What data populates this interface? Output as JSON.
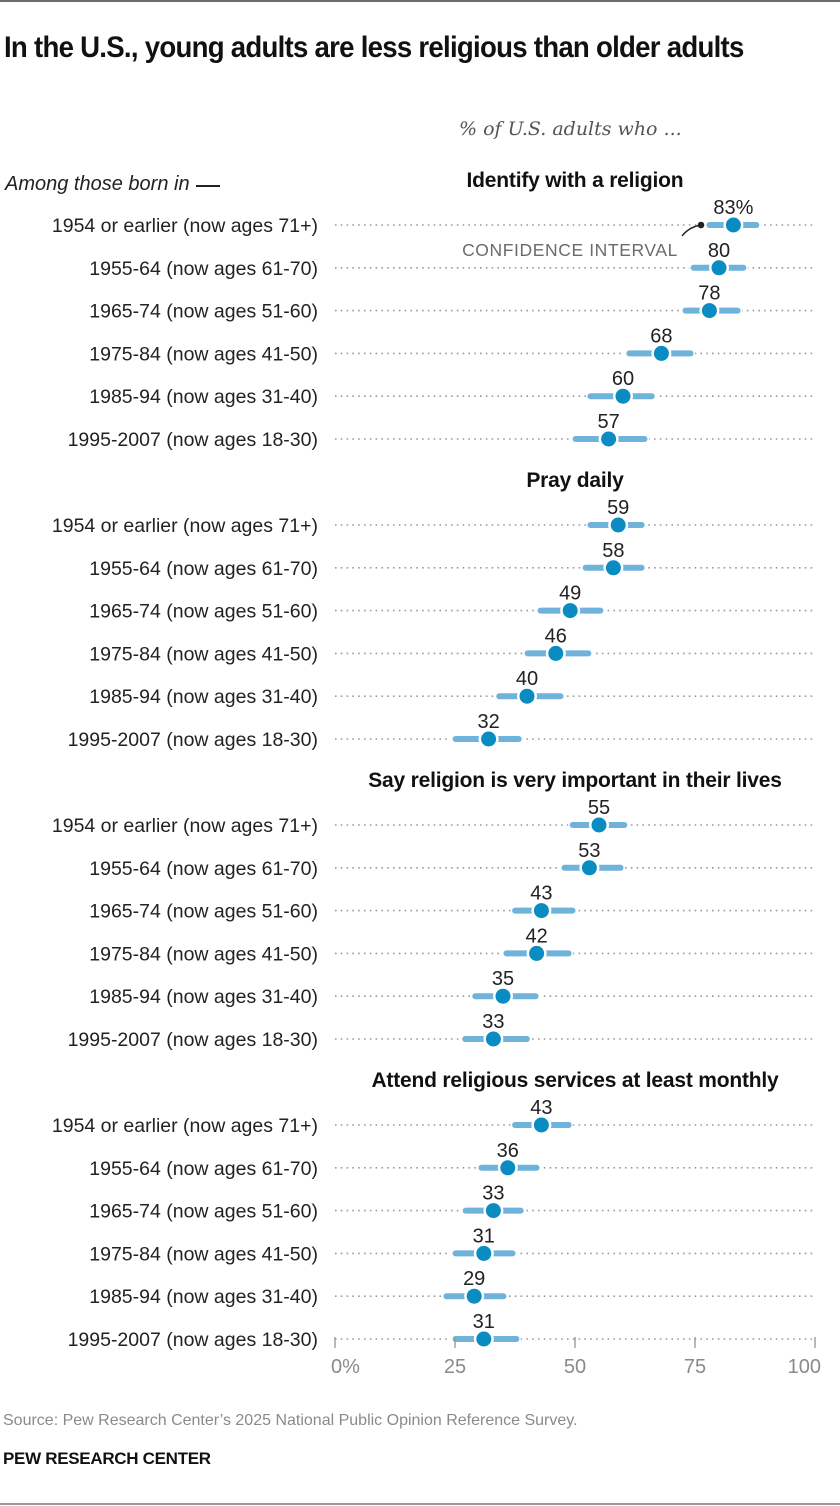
{
  "title": "In the U.S., young adults are less religious than older adults",
  "subtitle": "% of U.S. adults who ...",
  "row_group_label": "Among those born in",
  "annotation": "CONFIDENCE INTERVAL",
  "source": "Source: Pew Research Center’s 2025 National Public Opinion Reference Survey.",
  "brand": "PEW RESEARCH CENTER",
  "colors": {
    "point": "#0a8cc2",
    "interval": "#6fb2da",
    "dots": "#9a9a9a",
    "text": "#222222",
    "axis_label": "#8a8a8a",
    "annotation": "#6b6b6b"
  },
  "chart_data": {
    "type": "dot-interval",
    "title": "In the U.S., young adults are less religious than older adults",
    "subtitle": "% of U.S. adults who ...",
    "xlabel": "",
    "ylabel": "Among those born in __",
    "xlim": [
      0,
      100
    ],
    "x_ticks": [
      "0%",
      "25",
      "50",
      "75",
      "100"
    ],
    "x_tick_values": [
      0,
      25,
      50,
      75,
      100
    ],
    "categories": [
      "1954 or earlier (now ages 71+)",
      "1955-64 (now ages 61-70)",
      "1965-74 (now ages 51-60)",
      "1975-84 (now ages 41-50)",
      "1985-94 (now ages 31-40)",
      "1995-2007 (now ages 18-30)"
    ],
    "panels": [
      {
        "name": "Identify with a religion",
        "values": [
          83,
          80,
          78,
          68,
          60,
          57
        ],
        "labels": [
          "83%",
          "80",
          "78",
          "68",
          "60",
          "57"
        ],
        "ci_low": [
          77.5,
          74.2,
          72.5,
          60.8,
          52.7,
          49.6
        ],
        "ci_high": [
          88.3,
          85.6,
          84.4,
          74.6,
          66.5,
          65.0
        ]
      },
      {
        "name": "Pray daily",
        "values": [
          59,
          58,
          49,
          46,
          40,
          32
        ],
        "labels": [
          "59",
          "58",
          "49",
          "46",
          "40",
          "32"
        ],
        "ci_low": [
          52.7,
          51.7,
          42.3,
          39.6,
          33.7,
          24.6
        ],
        "ci_high": [
          64.4,
          64.4,
          55.8,
          53.3,
          47.5,
          38.8
        ]
      },
      {
        "name": "Say religion is very important in their lives",
        "values": [
          55,
          53,
          43,
          42,
          35,
          33
        ],
        "labels": [
          "55",
          "53",
          "43",
          "42",
          "35",
          "33"
        ],
        "ci_low": [
          49.0,
          47.3,
          37.0,
          35.2,
          28.7,
          26.6
        ],
        "ci_high": [
          60.8,
          60.0,
          50.0,
          49.2,
          42.3,
          40.5
        ]
      },
      {
        "name": "Attend religious services at least monthly",
        "values": [
          43,
          36,
          33,
          31,
          29,
          31
        ],
        "labels": [
          "43",
          "36",
          "33",
          "31",
          "29",
          "31"
        ],
        "ci_low": [
          37.0,
          30.0,
          26.7,
          24.6,
          22.7,
          24.6
        ],
        "ci_high": [
          49.2,
          42.5,
          39.2,
          37.5,
          35.6,
          38.3
        ]
      }
    ],
    "annotation": "CONFIDENCE INTERVAL",
    "grid": false,
    "legend": "none"
  }
}
